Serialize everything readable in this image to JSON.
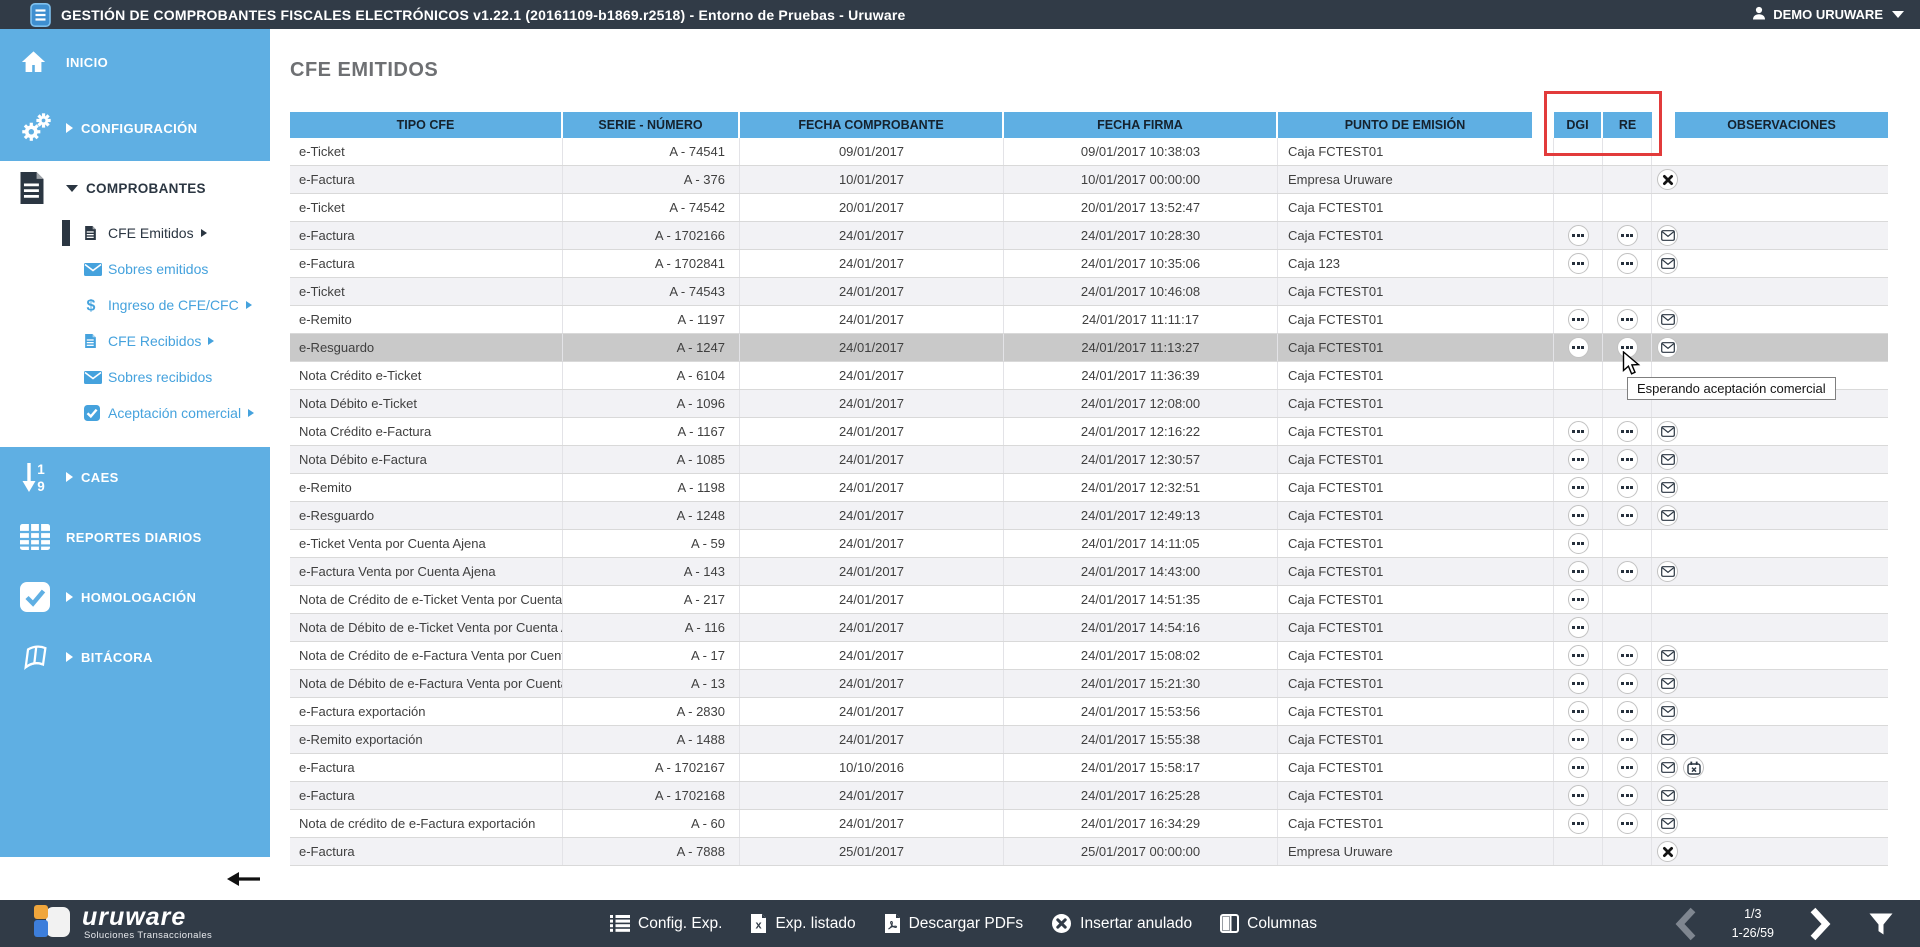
{
  "titlebar": {
    "title": "GESTIÓN DE COMPROBANTES FISCALES ELECTRÓNICOS v1.22.1 (20161109-b1869.r2518) - Entorno de Pruebas - Uruware",
    "user": "DEMO URUWARE"
  },
  "sidebar": {
    "top_items": [
      {
        "label": "INICIO",
        "icon": "home-icon",
        "caret": null
      },
      {
        "label": "CONFIGURACIÓN",
        "icon": "gears-icon",
        "caret": "right"
      }
    ],
    "group": {
      "label": "COMPROBANTES",
      "icon": "document-icon",
      "caret": "down",
      "children": [
        {
          "label": "CFE Emitidos",
          "icon": "document-icon",
          "caret": "right",
          "selected": true
        },
        {
          "label": "Sobres emitidos",
          "icon": "envelope-icon",
          "caret": null,
          "selected": false
        },
        {
          "label": "Ingreso de CFE/CFC",
          "icon": "dollar-icon",
          "caret": "right",
          "selected": false
        },
        {
          "label": "CFE Recibidos",
          "icon": "document-icon",
          "caret": "right",
          "selected": false
        },
        {
          "label": "Sobres recibidos",
          "icon": "envelope-icon",
          "caret": null,
          "selected": false
        },
        {
          "label": "Aceptación comercial",
          "icon": "check-icon",
          "caret": "right",
          "selected": false
        }
      ]
    },
    "bottom_items": [
      {
        "label": "CAES",
        "icon": "sort-numeric-icon",
        "caret": "right"
      },
      {
        "label": "REPORTES DIARIOS",
        "icon": "table-icon",
        "caret": null
      },
      {
        "label": "HOMOLOGACIÓN",
        "icon": "check-square-icon",
        "caret": "right"
      },
      {
        "label": "BITÁCORA",
        "icon": "book-icon",
        "caret": "right"
      }
    ]
  },
  "page": {
    "title": "CFE EMITIDOS"
  },
  "table": {
    "headers": [
      "TIPO CFE",
      "SERIE - NÚMERO",
      "FECHA COMPROBANTE",
      "FECHA FIRMA",
      "PUNTO DE EMISIÓN",
      "DGI",
      "RE",
      "OBSERVACIONES"
    ],
    "rows": [
      {
        "tipo": "e-Ticket",
        "serie": "A - 74541",
        "fecha": "09/01/2017",
        "firma": "09/01/2017 10:38:03",
        "punto": "Caja FCTEST01",
        "dgi": false,
        "re": false,
        "obs": []
      },
      {
        "tipo": "e-Factura",
        "serie": "A - 376",
        "fecha": "10/01/2017",
        "firma": "10/01/2017 00:00:00",
        "punto": "Empresa Uruware",
        "dgi": false,
        "re": false,
        "obs": [
          "x"
        ]
      },
      {
        "tipo": "e-Ticket",
        "serie": "A - 74542",
        "fecha": "20/01/2017",
        "firma": "20/01/2017 13:52:47",
        "punto": "Caja FCTEST01",
        "dgi": false,
        "re": false,
        "obs": []
      },
      {
        "tipo": "e-Factura",
        "serie": "A - 1702166",
        "fecha": "24/01/2017",
        "firma": "24/01/2017 10:28:30",
        "punto": "Caja FCTEST01",
        "dgi": true,
        "re": true,
        "obs": [
          "mail"
        ]
      },
      {
        "tipo": "e-Factura",
        "serie": "A - 1702841",
        "fecha": "24/01/2017",
        "firma": "24/01/2017 10:35:06",
        "punto": "Caja 123",
        "dgi": true,
        "re": true,
        "obs": [
          "mail"
        ]
      },
      {
        "tipo": "e-Ticket",
        "serie": "A - 74543",
        "fecha": "24/01/2017",
        "firma": "24/01/2017 10:46:08",
        "punto": "Caja FCTEST01",
        "dgi": false,
        "re": false,
        "obs": []
      },
      {
        "tipo": "e-Remito",
        "serie": "A - 1197",
        "fecha": "24/01/2017",
        "firma": "24/01/2017 11:11:17",
        "punto": "Caja FCTEST01",
        "dgi": true,
        "re": true,
        "obs": [
          "mail"
        ]
      },
      {
        "tipo": "e-Resguardo",
        "serie": "A - 1247",
        "fecha": "24/01/2017",
        "firma": "24/01/2017 11:13:27",
        "punto": "Caja FCTEST01",
        "dgi": true,
        "re": true,
        "obs": [
          "mail"
        ],
        "highlighted": true
      },
      {
        "tipo": "Nota Crédito e-Ticket",
        "serie": "A - 6104",
        "fecha": "24/01/2017",
        "firma": "24/01/2017 11:36:39",
        "punto": "Caja FCTEST01",
        "dgi": false,
        "re": false,
        "obs": []
      },
      {
        "tipo": "Nota Débito e-Ticket",
        "serie": "A - 1096",
        "fecha": "24/01/2017",
        "firma": "24/01/2017 12:08:00",
        "punto": "Caja FCTEST01",
        "dgi": false,
        "re": false,
        "obs": []
      },
      {
        "tipo": "Nota Crédito e-Factura",
        "serie": "A - 1167",
        "fecha": "24/01/2017",
        "firma": "24/01/2017 12:16:22",
        "punto": "Caja FCTEST01",
        "dgi": true,
        "re": true,
        "obs": [
          "mail"
        ]
      },
      {
        "tipo": "Nota Débito e-Factura",
        "serie": "A - 1085",
        "fecha": "24/01/2017",
        "firma": "24/01/2017 12:30:57",
        "punto": "Caja FCTEST01",
        "dgi": true,
        "re": true,
        "obs": [
          "mail"
        ]
      },
      {
        "tipo": "e-Remito",
        "serie": "A - 1198",
        "fecha": "24/01/2017",
        "firma": "24/01/2017 12:32:51",
        "punto": "Caja FCTEST01",
        "dgi": true,
        "re": true,
        "obs": [
          "mail"
        ]
      },
      {
        "tipo": "e-Resguardo",
        "serie": "A - 1248",
        "fecha": "24/01/2017",
        "firma": "24/01/2017 12:49:13",
        "punto": "Caja FCTEST01",
        "dgi": true,
        "re": true,
        "obs": [
          "mail"
        ]
      },
      {
        "tipo": "e-Ticket Venta por Cuenta Ajena",
        "serie": "A - 59",
        "fecha": "24/01/2017",
        "firma": "24/01/2017 14:11:05",
        "punto": "Caja FCTEST01",
        "dgi": true,
        "re": false,
        "obs": []
      },
      {
        "tipo": "e-Factura Venta por Cuenta Ajena",
        "serie": "A - 143",
        "fecha": "24/01/2017",
        "firma": "24/01/2017 14:43:00",
        "punto": "Caja FCTEST01",
        "dgi": true,
        "re": true,
        "obs": [
          "mail"
        ]
      },
      {
        "tipo": "Nota de Crédito de e-Ticket Venta por Cuenta Ajena",
        "serie": "A - 217",
        "fecha": "24/01/2017",
        "firma": "24/01/2017 14:51:35",
        "punto": "Caja FCTEST01",
        "dgi": true,
        "re": false,
        "obs": []
      },
      {
        "tipo": "Nota de Débito de e-Ticket Venta por Cuenta Ajena",
        "serie": "A - 116",
        "fecha": "24/01/2017",
        "firma": "24/01/2017 14:54:16",
        "punto": "Caja FCTEST01",
        "dgi": true,
        "re": false,
        "obs": []
      },
      {
        "tipo": "Nota de Crédito de e-Factura Venta por Cuenta Ajena",
        "serie": "A - 17",
        "fecha": "24/01/2017",
        "firma": "24/01/2017 15:08:02",
        "punto": "Caja FCTEST01",
        "dgi": true,
        "re": true,
        "obs": [
          "mail"
        ]
      },
      {
        "tipo": "Nota de Débito de e-Factura Venta por Cuenta Ajena",
        "serie": "A - 13",
        "fecha": "24/01/2017",
        "firma": "24/01/2017 15:21:30",
        "punto": "Caja FCTEST01",
        "dgi": true,
        "re": true,
        "obs": [
          "mail"
        ]
      },
      {
        "tipo": "e-Factura exportación",
        "serie": "A - 2830",
        "fecha": "24/01/2017",
        "firma": "24/01/2017 15:53:56",
        "punto": "Caja FCTEST01",
        "dgi": true,
        "re": true,
        "obs": [
          "mail"
        ]
      },
      {
        "tipo": "e-Remito exportación",
        "serie": "A - 1488",
        "fecha": "24/01/2017",
        "firma": "24/01/2017 15:55:38",
        "punto": "Caja FCTEST01",
        "dgi": true,
        "re": true,
        "obs": [
          "mail"
        ]
      },
      {
        "tipo": "e-Factura",
        "serie": "A - 1702167",
        "fecha": "10/10/2016",
        "firma": "24/01/2017 15:58:17",
        "punto": "Caja FCTEST01",
        "dgi": true,
        "re": true,
        "obs": [
          "mail",
          "calendar"
        ]
      },
      {
        "tipo": "e-Factura",
        "serie": "A - 1702168",
        "fecha": "24/01/2017",
        "firma": "24/01/2017 16:25:28",
        "punto": "Caja FCTEST01",
        "dgi": true,
        "re": true,
        "obs": [
          "mail"
        ]
      },
      {
        "tipo": "Nota de crédito de e-Factura exportación",
        "serie": "A - 60",
        "fecha": "24/01/2017",
        "firma": "24/01/2017 16:34:29",
        "punto": "Caja FCTEST01",
        "dgi": true,
        "re": true,
        "obs": [
          "mail"
        ]
      },
      {
        "tipo": "e-Factura",
        "serie": "A - 7888",
        "fecha": "25/01/2017",
        "firma": "25/01/2017 00:00:00",
        "punto": "Empresa Uruware",
        "dgi": false,
        "re": false,
        "obs": [
          "x"
        ]
      }
    ]
  },
  "tooltip": {
    "text": "Esperando aceptación comercial"
  },
  "footer": {
    "logo": {
      "name": "uruware",
      "tagline": "Soluciones Transaccionales"
    },
    "actions": [
      {
        "label": "Config. Exp.",
        "icon": "list-icon"
      },
      {
        "label": "Exp. listado",
        "icon": "excel-icon"
      },
      {
        "label": "Descargar PDFs",
        "icon": "pdf-icon"
      },
      {
        "label": "Insertar anulado",
        "icon": "x-circle-icon"
      },
      {
        "label": "Columnas",
        "icon": "columns-icon"
      }
    ],
    "pagination": {
      "page": "1/3",
      "range": "1-26/59"
    }
  },
  "colors": {
    "topbar": "#313b47",
    "sidebar_blue": "#5fafe3",
    "link_blue": "#45a2dd",
    "header_blue": "#5fafe3",
    "row_alt": "#f2f2f5",
    "row_highlight": "#c9c9c9",
    "annotation_red": "#e23b3b"
  }
}
